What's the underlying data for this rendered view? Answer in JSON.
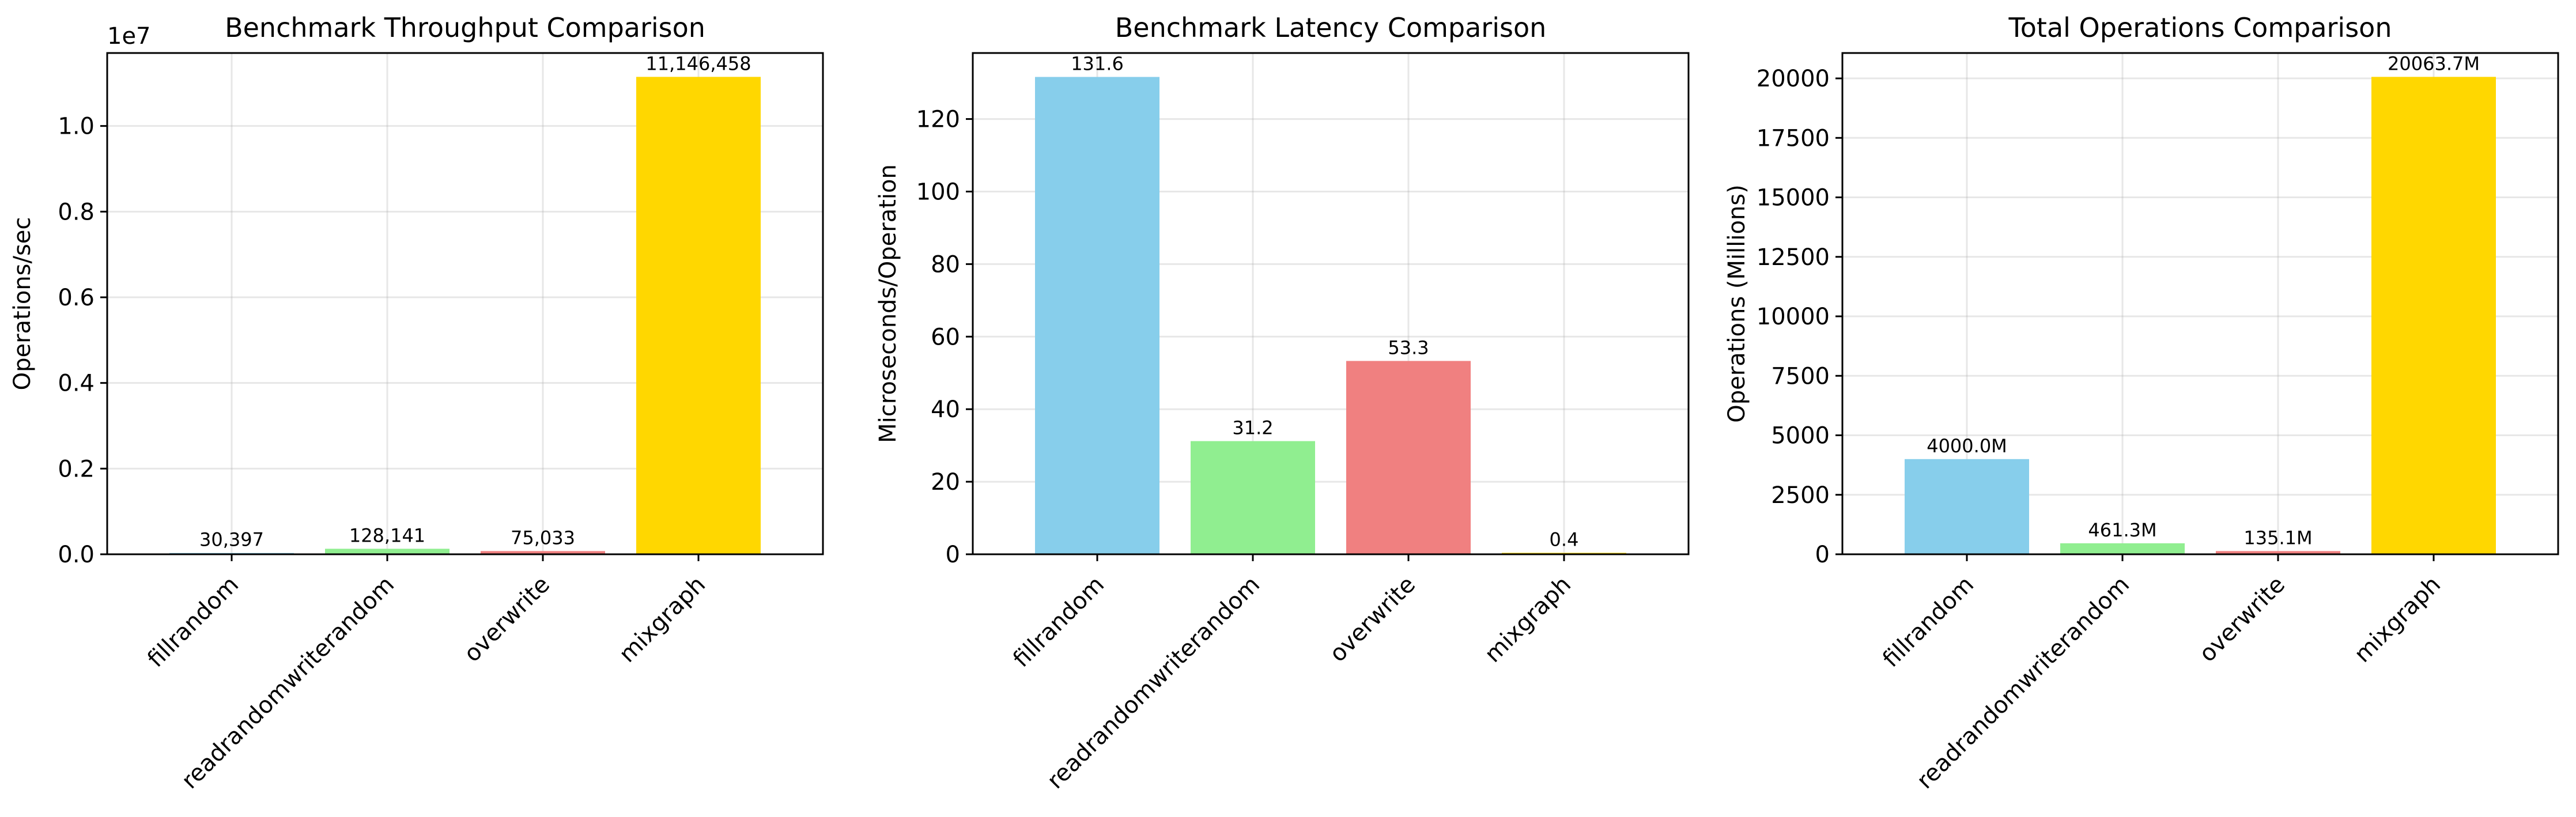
{
  "chart_data": [
    {
      "type": "bar",
      "title": "Benchmark Throughput Comparison",
      "xlabel": "",
      "ylabel": "Operations/sec",
      "scale_note": "1e7",
      "categories": [
        "fillrandom",
        "readrandomwriterandom",
        "overwrite",
        "mixgraph"
      ],
      "values": [
        30397,
        128141,
        75033,
        11146458
      ],
      "value_labels": [
        "30,397",
        "128,141",
        "75,033",
        "11,146,458"
      ],
      "colors": [
        "#87ceeb",
        "#90ee90",
        "#f08080",
        "#ffd700"
      ],
      "ylim": [
        0,
        11703781
      ],
      "yticks": [
        0,
        2000000,
        4000000,
        6000000,
        8000000,
        10000000
      ],
      "ytick_labels": [
        "0.0",
        "0.2",
        "0.4",
        "0.6",
        "0.8",
        "1.0"
      ],
      "grid": true
    },
    {
      "type": "bar",
      "title": "Benchmark Latency Comparison",
      "xlabel": "",
      "ylabel": "Microseconds/Operation",
      "categories": [
        "fillrandom",
        "readrandomwriterandom",
        "overwrite",
        "mixgraph"
      ],
      "values": [
        131.6,
        31.2,
        53.3,
        0.4
      ],
      "value_labels": [
        "131.6",
        "31.2",
        "53.3",
        "0.4"
      ],
      "colors": [
        "#87ceeb",
        "#90ee90",
        "#f08080",
        "#ffd700"
      ],
      "ylim": [
        0,
        138.2
      ],
      "yticks": [
        0,
        20,
        40,
        60,
        80,
        100,
        120
      ],
      "ytick_labels": [
        "0",
        "20",
        "40",
        "60",
        "80",
        "100",
        "120"
      ],
      "grid": true
    },
    {
      "type": "bar",
      "title": "Total Operations Comparison",
      "xlabel": "",
      "ylabel": "Operations (Millions)",
      "categories": [
        "fillrandom",
        "readrandomwriterandom",
        "overwrite",
        "mixgraph"
      ],
      "values": [
        4000.0,
        461.3,
        135.1,
        20063.7
      ],
      "value_labels": [
        "4000.0M",
        "461.3M",
        "135.1M",
        "20063.7M"
      ],
      "colors": [
        "#87ceeb",
        "#90ee90",
        "#f08080",
        "#ffd700"
      ],
      "ylim": [
        0,
        21066.9
      ],
      "yticks": [
        0,
        2500,
        5000,
        7500,
        10000,
        12500,
        15000,
        17500,
        20000
      ],
      "ytick_labels": [
        "0",
        "2500",
        "5000",
        "7500",
        "10000",
        "12500",
        "15000",
        "17500",
        "20000"
      ],
      "grid": true
    }
  ]
}
